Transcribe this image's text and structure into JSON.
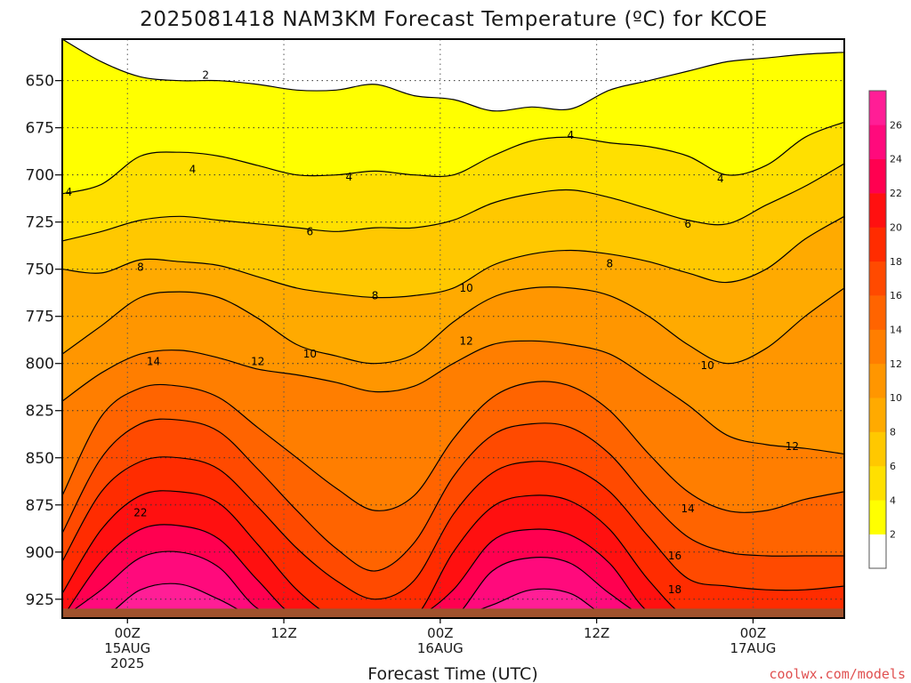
{
  "chart_data": {
    "type": "heatmap",
    "title": "2025081418 NAM3KM Forecast Temperature (ºC) for KCOE",
    "xlabel": "Forecast Time (UTC)",
    "ylabel": "",
    "credit": "coolwx.com/models",
    "y_axis": {
      "quantity": "pressure (hPa)",
      "inverted": true,
      "range": [
        935,
        628
      ],
      "ticks": [
        650,
        675,
        700,
        725,
        750,
        775,
        800,
        825,
        850,
        875,
        900,
        925
      ]
    },
    "x_axis": {
      "range_hours": [
        -5,
        55
      ],
      "ticks": [
        {
          "hour": 0,
          "line1": "00Z",
          "line2": "15AUG",
          "line3": "2025"
        },
        {
          "hour": 12,
          "line1": "12Z",
          "line2": "",
          "line3": ""
        },
        {
          "hour": 24,
          "line1": "00Z",
          "line2": "16AUG",
          "line3": ""
        },
        {
          "hour": 36,
          "line1": "12Z",
          "line2": "",
          "line3": ""
        },
        {
          "hour": 48,
          "line1": "00Z",
          "line2": "17AUG",
          "line3": ""
        }
      ]
    },
    "grid": "dotted",
    "colorbar": {
      "position": "right",
      "levels": [
        2,
        4,
        6,
        8,
        10,
        12,
        14,
        16,
        18,
        20,
        22,
        24,
        26
      ],
      "labels": [
        "2",
        "4",
        "6",
        "8",
        "10",
        "12",
        "14",
        "16",
        "18",
        "20",
        "22",
        "24",
        "26"
      ],
      "colors": [
        "#ffffff",
        "#ffff00",
        "#ffe000",
        "#ffc800",
        "#ffaa00",
        "#ff9600",
        "#ff7e00",
        "#ff6400",
        "#ff4a00",
        "#ff2c00",
        "#ff1010",
        "#ff0050",
        "#ff0a7c",
        "#ff1e96"
      ]
    },
    "isotherms": [
      {
        "value": 2,
        "p": [
          628,
          640,
          648,
          650,
          650,
          652,
          655,
          655,
          652,
          658,
          660,
          666,
          664,
          665,
          655,
          650,
          645,
          640,
          638,
          636,
          635
        ]
      },
      {
        "value": 4,
        "p": [
          710,
          705,
          690,
          688,
          690,
          695,
          700,
          700,
          698,
          700,
          700,
          690,
          682,
          680,
          683,
          685,
          690,
          700,
          695,
          680,
          672
        ]
      },
      {
        "value": 6,
        "p": [
          735,
          730,
          724,
          722,
          724,
          726,
          728,
          730,
          728,
          728,
          724,
          715,
          710,
          708,
          712,
          718,
          724,
          726,
          716,
          706,
          694
        ]
      },
      {
        "value": 8,
        "p": [
          750,
          752,
          745,
          746,
          748,
          754,
          760,
          763,
          765,
          764,
          760,
          748,
          742,
          740,
          742,
          746,
          752,
          757,
          750,
          734,
          722
        ]
      },
      {
        "value": 10,
        "p": [
          795,
          780,
          765,
          762,
          765,
          776,
          790,
          796,
          800,
          795,
          778,
          765,
          760,
          760,
          764,
          775,
          790,
          800,
          792,
          775,
          760
        ]
      },
      {
        "value": 12,
        "p": [
          820,
          805,
          795,
          793,
          797,
          803,
          806,
          810,
          815,
          812,
          800,
          790,
          788,
          790,
          795,
          808,
          822,
          838,
          843,
          845,
          848
        ]
      },
      {
        "value": 14,
        "p": [
          870,
          828,
          813,
          812,
          818,
          834,
          850,
          866,
          878,
          870,
          840,
          818,
          810,
          812,
          825,
          848,
          868,
          878,
          878,
          872,
          868
        ]
      },
      {
        "value": 16,
        "p": [
          890,
          850,
          832,
          830,
          836,
          856,
          878,
          898,
          910,
          895,
          860,
          838,
          832,
          834,
          848,
          872,
          892,
          900,
          902,
          902,
          902
        ]
      },
      {
        "value": 18,
        "p": [
          905,
          868,
          852,
          850,
          856,
          876,
          898,
          915,
          925,
          915,
          880,
          858,
          852,
          855,
          868,
          892,
          914,
          918,
          920,
          920,
          918
        ]
      },
      {
        "value": 20,
        "p": [
          922,
          888,
          870,
          868,
          874,
          896,
          920,
          935,
          935,
          935,
          900,
          876,
          870,
          873,
          888,
          915,
          935,
          935,
          935,
          935,
          935
        ]
      },
      {
        "value": 22,
        "p": [
          935,
          905,
          888,
          886,
          893,
          915,
          935,
          935,
          935,
          935,
          920,
          894,
          888,
          891,
          906,
          932,
          935,
          935,
          935,
          935,
          935
        ]
      },
      {
        "value": 24,
        "p": [
          935,
          920,
          903,
          900,
          908,
          930,
          935,
          935,
          935,
          935,
          935,
          910,
          903,
          906,
          922,
          935,
          935,
          935,
          935,
          935,
          935
        ]
      },
      {
        "value": 26,
        "p": [
          935,
          935,
          920,
          917,
          925,
          935,
          935,
          935,
          935,
          935,
          935,
          928,
          920,
          922,
          935,
          935,
          935,
          935,
          935,
          935,
          935
        ]
      }
    ],
    "contour_labels": [
      {
        "text": "2",
        "hour": 6.0,
        "p": 647
      },
      {
        "text": "4",
        "hour": -4.5,
        "p": 709
      },
      {
        "text": "4",
        "hour": 5.0,
        "p": 697
      },
      {
        "text": "4",
        "hour": 17.0,
        "p": 701
      },
      {
        "text": "4",
        "hour": 34.0,
        "p": 679
      },
      {
        "text": "4",
        "hour": 45.5,
        "p": 702
      },
      {
        "text": "6",
        "hour": 14.0,
        "p": 730
      },
      {
        "text": "6",
        "hour": 43.0,
        "p": 726
      },
      {
        "text": "8",
        "hour": 1.0,
        "p": 749
      },
      {
        "text": "8",
        "hour": 19.0,
        "p": 764
      },
      {
        "text": "8",
        "hour": 37.0,
        "p": 747
      },
      {
        "text": "10",
        "hour": 14.0,
        "p": 795
      },
      {
        "text": "10",
        "hour": 26.0,
        "p": 760
      },
      {
        "text": "10",
        "hour": 44.5,
        "p": 801
      },
      {
        "text": "12",
        "hour": 10.0,
        "p": 799
      },
      {
        "text": "12",
        "hour": 26.0,
        "p": 788
      },
      {
        "text": "12",
        "hour": 51.0,
        "p": 844
      },
      {
        "text": "14",
        "hour": 2.0,
        "p": 799
      },
      {
        "text": "14",
        "hour": 43.0,
        "p": 877
      },
      {
        "text": "16",
        "hour": 42.0,
        "p": 902
      },
      {
        "text": "18",
        "hour": 42.0,
        "p": 920
      },
      {
        "text": "22",
        "hour": 1.0,
        "p": 879
      }
    ],
    "surface": {
      "p": 930
    }
  }
}
